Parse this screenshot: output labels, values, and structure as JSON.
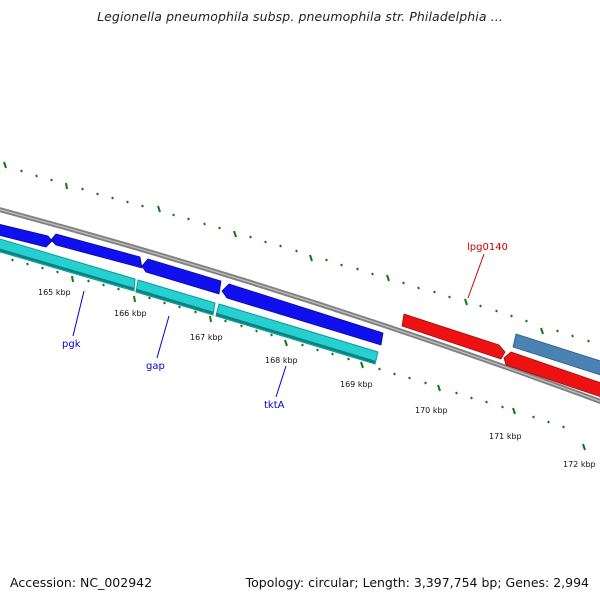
{
  "title": "Legionella pneumophila subsp. pneumophila str. Philadelphia ...",
  "footer": {
    "accession": "Accession: NC_002942",
    "topology": "Topology: circular; Length: 3,397,754 bp; Genes: 2,994"
  },
  "map": {
    "colors": {
      "backbone": "#808080",
      "gene_forward": "#1010ee",
      "gene_cds": "#26d0d0",
      "gene_cds_edge": "#0e9a9a",
      "gene_red": "#ee1111",
      "gene_steel": "#4a82b4",
      "tick": "#117711",
      "gene_label": "#0000cc",
      "gene_label_red": "#cc0000"
    },
    "kbp_labels": [
      "165 kbp",
      "166 kbp",
      "167 kbp",
      "168 kbp",
      "169 kbp",
      "170 kbp",
      "171 kbp",
      "172 kbp"
    ],
    "gene_labels": [
      {
        "text": "pgk",
        "color": "blue"
      },
      {
        "text": "gap",
        "color": "blue"
      },
      {
        "text": "tktA",
        "color": "blue"
      },
      {
        "text": "lpg0140",
        "color": "red"
      }
    ]
  }
}
